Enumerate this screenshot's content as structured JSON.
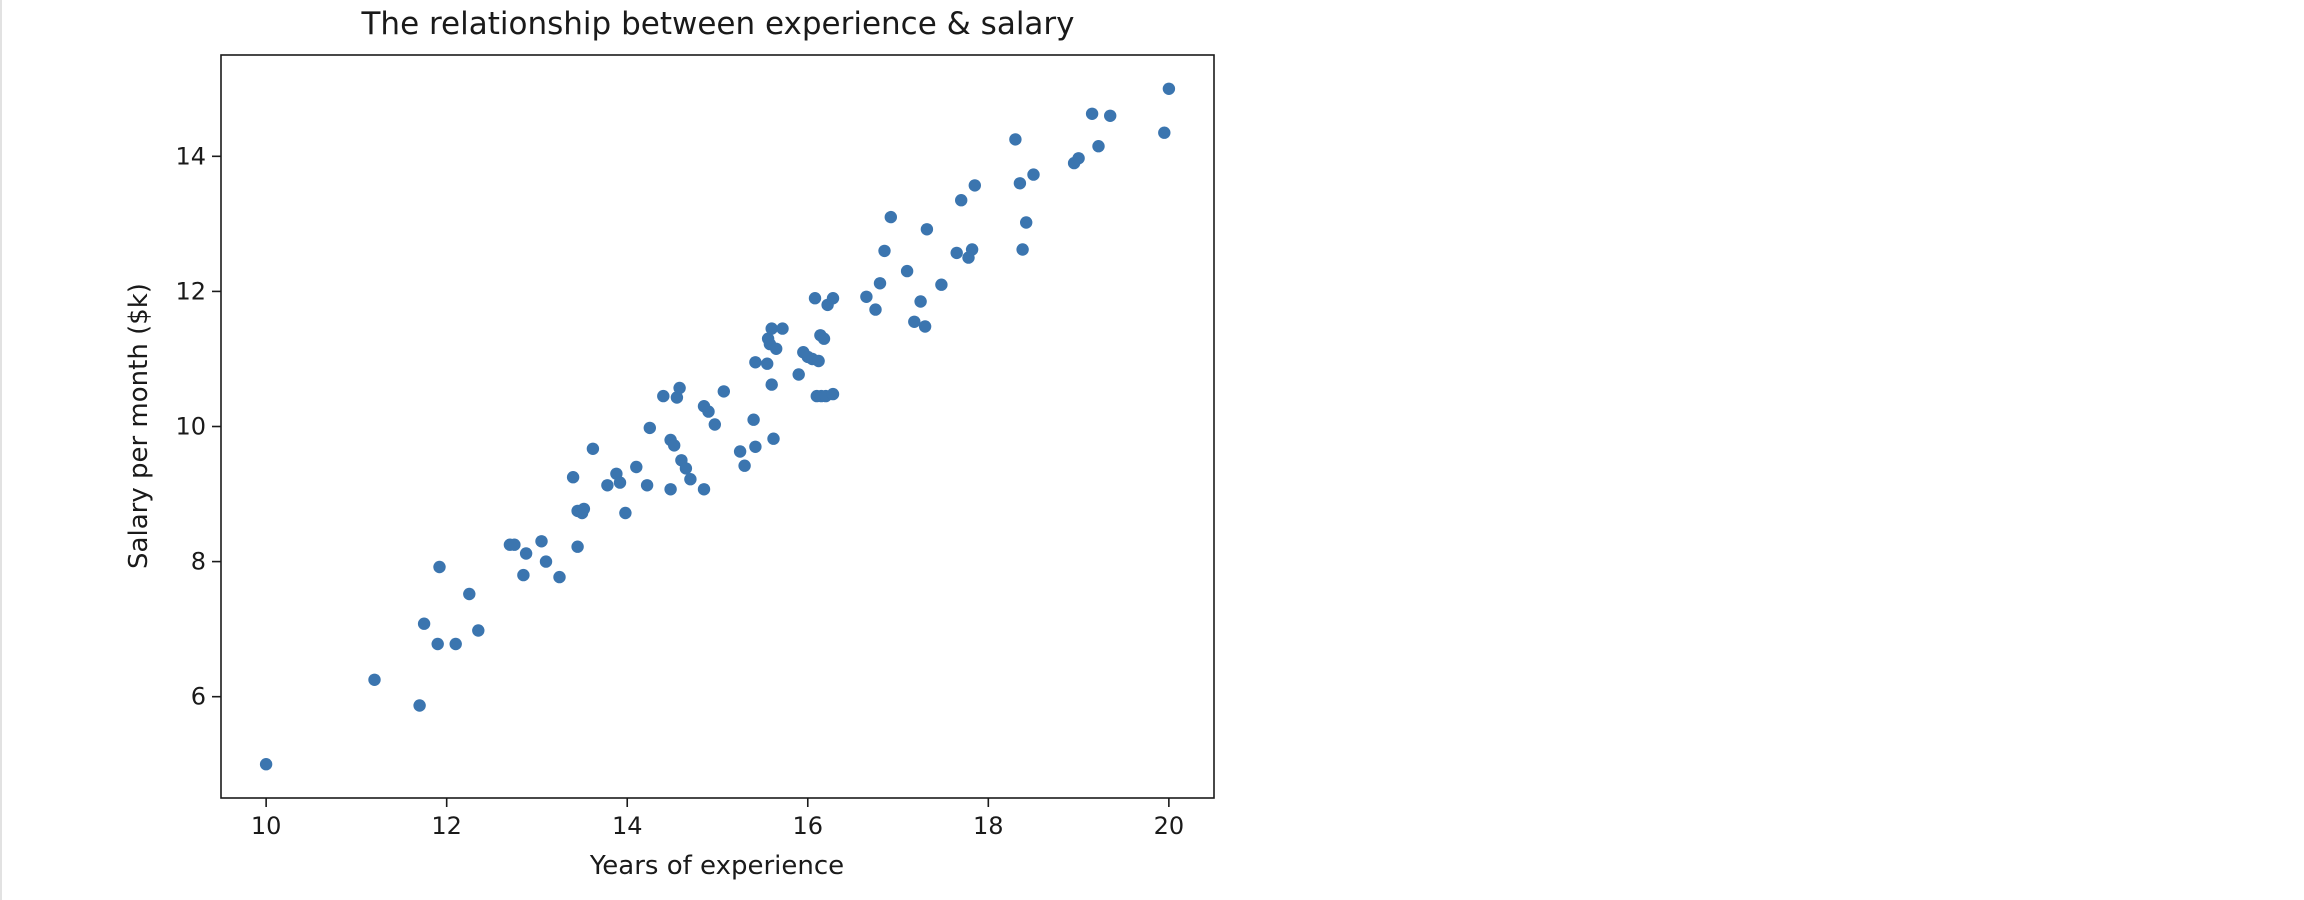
{
  "chart_data": {
    "type": "scatter",
    "title": "The relationship between experience & salary",
    "xlabel": "Years of experience",
    "ylabel": "Salary per month ($k)",
    "xlim": [
      9.5,
      20.5
    ],
    "ylim": [
      4.5,
      15.5
    ],
    "xticks": [
      10,
      12,
      14,
      16,
      18,
      20
    ],
    "yticks": [
      6,
      8,
      10,
      12,
      14
    ],
    "grid": false,
    "marker_color": "#3b75af",
    "points": [
      [
        10.0,
        5.0
      ],
      [
        11.2,
        6.25
      ],
      [
        11.7,
        5.87
      ],
      [
        11.75,
        7.08
      ],
      [
        11.9,
        6.78
      ],
      [
        11.92,
        7.92
      ],
      [
        12.1,
        6.78
      ],
      [
        12.25,
        7.52
      ],
      [
        12.35,
        6.98
      ],
      [
        12.7,
        8.25
      ],
      [
        12.75,
        8.25
      ],
      [
        12.85,
        7.8
      ],
      [
        12.88,
        8.12
      ],
      [
        13.05,
        8.3
      ],
      [
        13.1,
        8.0
      ],
      [
        13.25,
        7.77
      ],
      [
        13.4,
        9.25
      ],
      [
        13.45,
        8.75
      ],
      [
        13.45,
        8.22
      ],
      [
        13.5,
        8.72
      ],
      [
        13.52,
        8.78
      ],
      [
        13.62,
        9.67
      ],
      [
        13.78,
        9.13
      ],
      [
        13.88,
        9.3
      ],
      [
        13.92,
        9.17
      ],
      [
        13.98,
        8.72
      ],
      [
        14.1,
        9.4
      ],
      [
        14.22,
        9.13
      ],
      [
        14.25,
        9.98
      ],
      [
        14.4,
        10.45
      ],
      [
        14.48,
        9.07
      ],
      [
        14.48,
        9.8
      ],
      [
        14.52,
        9.72
      ],
      [
        14.55,
        10.43
      ],
      [
        14.58,
        10.57
      ],
      [
        14.6,
        9.5
      ],
      [
        14.65,
        9.38
      ],
      [
        14.7,
        9.22
      ],
      [
        14.85,
        9.07
      ],
      [
        14.85,
        10.3
      ],
      [
        14.9,
        10.22
      ],
      [
        14.97,
        10.03
      ],
      [
        15.07,
        10.52
      ],
      [
        15.25,
        9.63
      ],
      [
        15.3,
        9.42
      ],
      [
        15.4,
        10.1
      ],
      [
        15.42,
        9.7
      ],
      [
        15.42,
        10.95
      ],
      [
        15.55,
        10.93
      ],
      [
        15.56,
        11.3
      ],
      [
        15.58,
        11.22
      ],
      [
        15.6,
        11.45
      ],
      [
        15.6,
        10.62
      ],
      [
        15.62,
        9.82
      ],
      [
        15.65,
        11.15
      ],
      [
        15.72,
        11.45
      ],
      [
        15.9,
        10.77
      ],
      [
        15.95,
        11.1
      ],
      [
        16.0,
        11.03
      ],
      [
        16.05,
        11.0
      ],
      [
        16.08,
        11.9
      ],
      [
        16.1,
        10.45
      ],
      [
        16.12,
        10.97
      ],
      [
        16.14,
        11.35
      ],
      [
        16.15,
        10.45
      ],
      [
        16.18,
        11.3
      ],
      [
        16.2,
        10.45
      ],
      [
        16.22,
        11.8
      ],
      [
        16.28,
        11.9
      ],
      [
        16.28,
        10.48
      ],
      [
        16.65,
        11.92
      ],
      [
        16.75,
        11.73
      ],
      [
        16.8,
        12.12
      ],
      [
        16.85,
        12.6
      ],
      [
        16.92,
        13.1
      ],
      [
        17.1,
        12.3
      ],
      [
        17.18,
        11.55
      ],
      [
        17.25,
        11.85
      ],
      [
        17.3,
        11.48
      ],
      [
        17.32,
        12.92
      ],
      [
        17.48,
        12.1
      ],
      [
        17.65,
        12.57
      ],
      [
        17.7,
        13.35
      ],
      [
        17.78,
        12.5
      ],
      [
        17.82,
        12.62
      ],
      [
        17.85,
        13.57
      ],
      [
        18.3,
        14.25
      ],
      [
        18.35,
        13.6
      ],
      [
        18.38,
        12.62
      ],
      [
        18.42,
        13.02
      ],
      [
        18.5,
        13.73
      ],
      [
        18.95,
        13.9
      ],
      [
        19.0,
        13.97
      ],
      [
        19.15,
        14.63
      ],
      [
        19.22,
        14.15
      ],
      [
        19.35,
        14.6
      ],
      [
        19.95,
        14.35
      ],
      [
        20.0,
        15.0
      ]
    ]
  }
}
